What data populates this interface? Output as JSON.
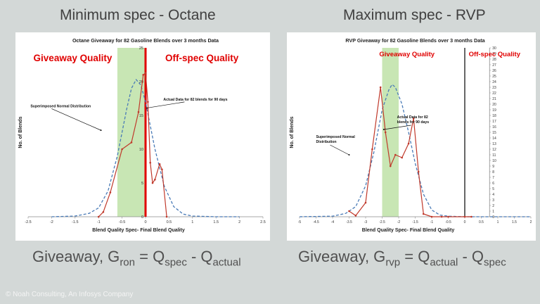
{
  "left": {
    "heading": "Minimum spec - Octane",
    "formula": {
      "prefix": "Giveaway, G",
      "sub1": "ron",
      "mid": " = Q",
      "sub2": "spec",
      "mid2": " - Q",
      "sub3": "actual"
    }
  },
  "right": {
    "heading": "Maximum spec - RVP",
    "formula": {
      "prefix": "Giveaway, G",
      "sub1": "rvp",
      "mid": " = Q",
      "sub2": "actual",
      "mid2": " - Q",
      "sub3": "spec"
    }
  },
  "copyright": "© Noah Consulting, An Infosys Company",
  "chart_data": [
    {
      "type": "line",
      "title": "Octane Giveaway for 82 Gasoline Blends over 3 months Data",
      "xlabel": "Blend Quality Spec- Final  Blend Quality",
      "ylabel": "No. of Blends",
      "xlim": [
        -2.5,
        2.5
      ],
      "ylim": [
        0,
        25
      ],
      "x_ticks": [
        -2.5,
        -2,
        -1.5,
        -1,
        -0.5,
        0,
        0.5,
        1,
        1.5,
        2,
        2.5
      ],
      "y_ticks": [
        0,
        5,
        10,
        15,
        20,
        25
      ],
      "y_tick_labels": [
        "0",
        "5",
        "10",
        "15",
        "20",
        "25"
      ],
      "shaded_region": {
        "x": [
          -0.6,
          0
        ],
        "color": "#c8e6b4"
      },
      "spec_line": {
        "x": 0,
        "color": "#e00000"
      },
      "region_labels": {
        "left": "Giveaway Quality",
        "right": "Off-spec Quality"
      },
      "annotations": {
        "normal": "Superimposed Normal Distribution",
        "actual": "Actual Data for 82 blends for 90 days"
      },
      "series": [
        {
          "name": "Superimposed Normal Distribution",
          "style": "dashed",
          "color": "#4a7bb7",
          "x": [
            -2,
            -1.5,
            -1.2,
            -1,
            -0.8,
            -0.6,
            -0.4,
            -0.3,
            -0.2,
            -0.1,
            0,
            0.2,
            0.4,
            0.6,
            0.8,
            1,
            1.5,
            2
          ],
          "y": [
            0,
            0.1,
            0.5,
            1.3,
            3.8,
            9,
            16,
            19,
            20.3,
            19.5,
            17,
            10,
            4.5,
            1.5,
            0.4,
            0.1,
            0,
            0
          ]
        },
        {
          "name": "Actual Data for 82 blends for 90 days",
          "style": "solid",
          "color": "#c0392b",
          "x": [
            -1,
            -0.9,
            -0.75,
            -0.5,
            -0.3,
            -0.15,
            -0.05,
            0,
            0.05,
            0.1,
            0.15,
            0.2,
            0.3,
            0.35,
            0.45
          ],
          "y": [
            0,
            0.7,
            3.6,
            10,
            11,
            15.5,
            21,
            21.3,
            17,
            8,
            5,
            5.5,
            7.8,
            7,
            0
          ]
        }
      ]
    },
    {
      "type": "line",
      "title": "RVP Giveaway for 82 Gasoline Blends over 3 months Data",
      "xlabel": "Blend Quality Spec- Final  Blend Quality",
      "ylabel": "No. of Blends",
      "xlim": [
        -5,
        2
      ],
      "ylim": [
        0,
        30
      ],
      "x_ticks": [
        -5,
        -4.5,
        -4,
        -3.5,
        -3,
        -2.5,
        -2,
        -1.5,
        -1,
        -0.5,
        0,
        0.5,
        1,
        1.5,
        2
      ],
      "y_ticks": [
        0,
        1,
        2,
        3,
        4,
        5,
        6,
        7,
        8,
        9,
        10,
        11,
        12,
        13,
        14,
        15,
        16,
        17,
        18,
        19,
        20,
        21,
        22,
        23,
        24,
        25,
        26,
        27,
        28,
        29,
        30
      ],
      "y_tick_labels": [
        "0",
        "1",
        "2",
        "3",
        "4",
        "5",
        "6",
        "7",
        "8",
        "9",
        "10",
        "11",
        "12",
        "13",
        "14",
        "15",
        "16",
        "17",
        "18",
        "19",
        "20",
        "21",
        "22",
        "23",
        "24",
        "25",
        "26",
        "27",
        "28",
        "29",
        "30"
      ],
      "shaded_region": {
        "x": [
          -2.5,
          -2
        ],
        "color": "#c8e6b4"
      },
      "spec_line": {
        "x": 0,
        "color": "#000000"
      },
      "region_labels": {
        "left": "Giveaway Quality",
        "right": "Off-spec Quality"
      },
      "annotations": {
        "normal": "Superimposed Normal Distribution",
        "actual": "Actual Data for 82 blends for 90 days"
      },
      "series": [
        {
          "name": "Superimposed Normal Distribution",
          "style": "dashed",
          "color": "#4a7bb7",
          "x": [
            -5,
            -4,
            -3.6,
            -3.3,
            -3,
            -2.75,
            -2.5,
            -2.3,
            -2.2,
            -2.1,
            -1.9,
            -1.7,
            -1.5,
            -1.25,
            -1,
            -0.75,
            -0.5,
            0,
            2
          ],
          "y": [
            0,
            0.1,
            0.6,
            1.8,
            5.5,
            11.5,
            19,
            22.5,
            23.5,
            23,
            20,
            15,
            9.5,
            4,
            1.2,
            0.3,
            0.1,
            0,
            0
          ]
        },
        {
          "name": "Actual Data for 82 blends for 90 days",
          "style": "solid",
          "color": "#c0392b",
          "x": [
            -3.5,
            -3.3,
            -3,
            -2.8,
            -2.55,
            -2.4,
            -2.25,
            -2.1,
            -1.9,
            -1.7,
            -1.55,
            -1.4,
            -1.25,
            -1,
            -0.7,
            -0.5,
            0,
            0.2
          ],
          "y": [
            1,
            0.2,
            2.5,
            12,
            23,
            15,
            9,
            11,
            10.5,
            13,
            17.5,
            8,
            0.5,
            0,
            0,
            0,
            0,
            0
          ]
        }
      ]
    }
  ]
}
